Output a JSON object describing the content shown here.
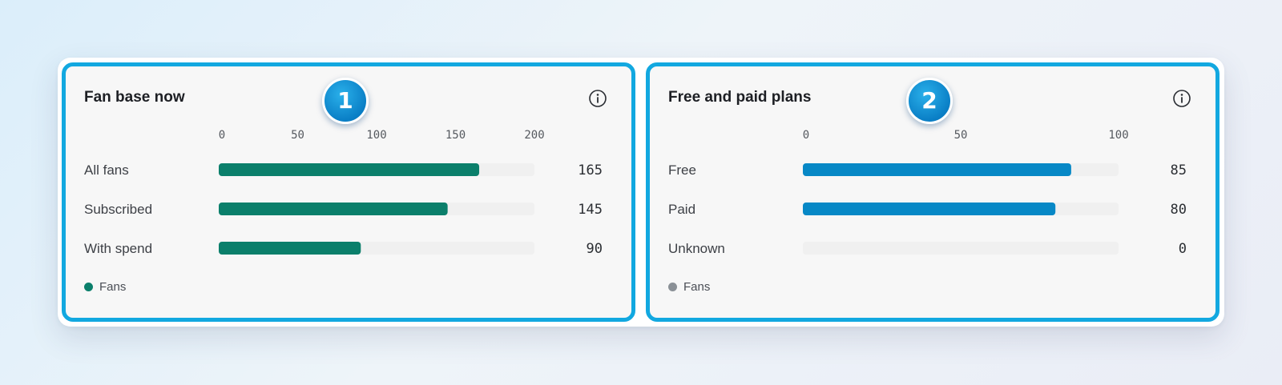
{
  "colors": {
    "highlight_border": "#12a8e0",
    "badge": "#0a7fc6"
  },
  "chart_data": [
    {
      "type": "bar",
      "orientation": "horizontal",
      "title": "Fan base now",
      "badge": "1",
      "info_icon": "info-icon",
      "categories": [
        "All fans",
        "Subscribed",
        "With spend"
      ],
      "series": [
        {
          "name": "Fans",
          "values": [
            165,
            145,
            90
          ],
          "color": "#0b7f6b"
        }
      ],
      "xlim": [
        0,
        200
      ],
      "ticks": [
        0,
        50,
        100,
        150,
        200
      ],
      "tick_labels": [
        "0",
        "50",
        "100",
        "150",
        "200"
      ],
      "value_labels": [
        "165",
        "145",
        "90"
      ],
      "track_color": "#f0f0f0",
      "grid": false,
      "legend": {
        "position": "bottom-left",
        "label": "Fans",
        "color": "#0b7f6b"
      }
    },
    {
      "type": "bar",
      "orientation": "horizontal",
      "title": "Free and paid plans",
      "badge": "2",
      "info_icon": "info-icon",
      "categories": [
        "Free",
        "Paid",
        "Unknown"
      ],
      "series": [
        {
          "name": "Fans",
          "values": [
            85,
            80,
            0
          ],
          "color": "#0788c6"
        }
      ],
      "xlim": [
        0,
        100
      ],
      "ticks": [
        0,
        50,
        100
      ],
      "tick_labels": [
        "0",
        "50",
        "100"
      ],
      "value_labels": [
        "85",
        "80",
        "0"
      ],
      "track_color": "#f0f0f0",
      "grid": false,
      "legend": {
        "position": "bottom-left",
        "label": "Fans",
        "color": "#8a9096"
      }
    }
  ]
}
